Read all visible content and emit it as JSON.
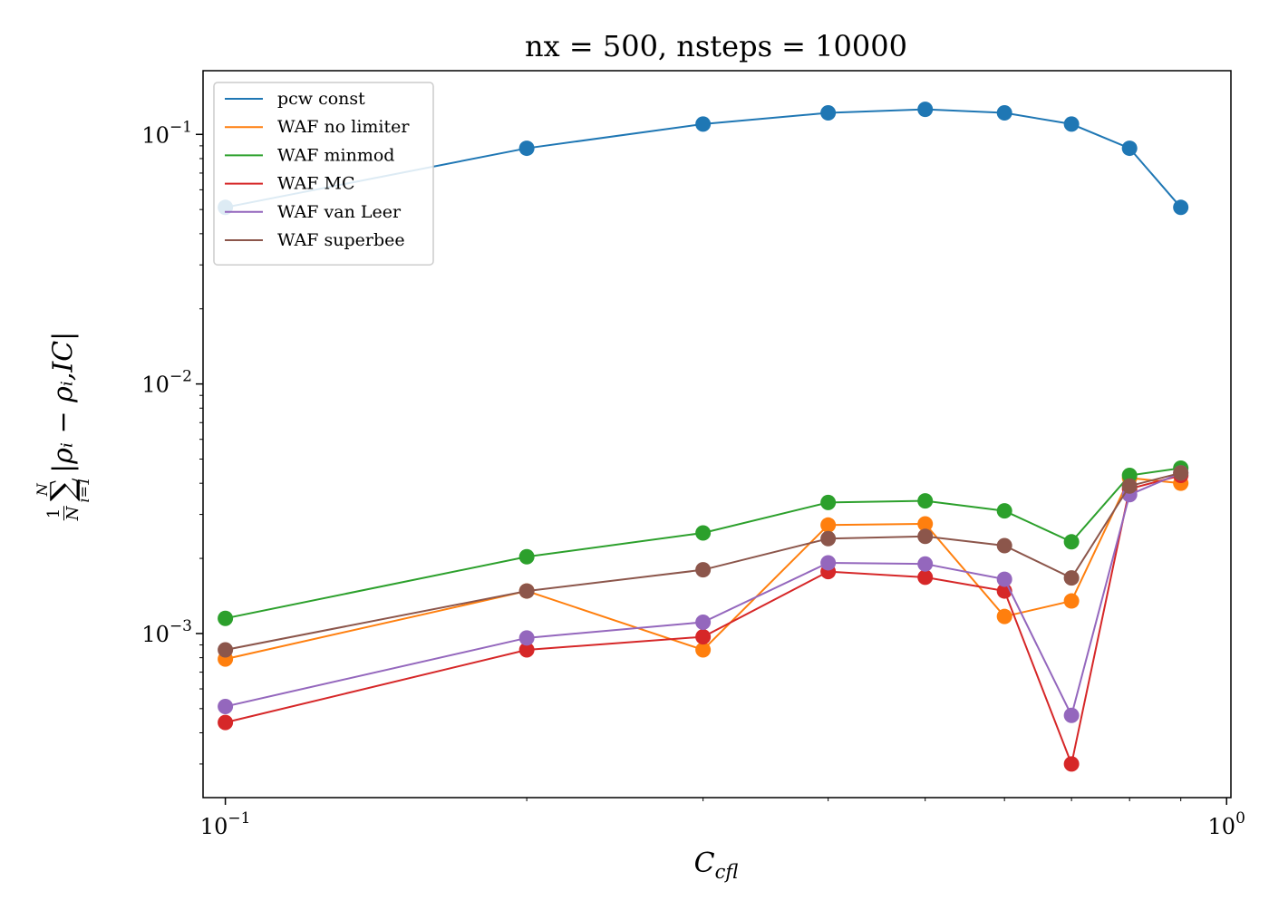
{
  "chart_data": {
    "type": "line",
    "title": "nx = 500, nsteps = 10000",
    "xlabel": "C",
    "xlabel_sub": "cfl",
    "ylabel": {
      "frac_num": "1",
      "frac_den": "N",
      "sum_top": "N",
      "sum_bottom": "i=1",
      "sum_symbol": "∑",
      "body": "|ρᵢ − ρᵢ,IC|"
    },
    "xscale": "log",
    "yscale": "log",
    "xlim": [
      0.095,
      1.01
    ],
    "ylim": [
      0.00022,
      0.18
    ],
    "x_ticks": [
      {
        "value": 0.1,
        "base": "10",
        "exp": "−1"
      },
      {
        "value": 1.0,
        "base": "10",
        "exp": "0"
      }
    ],
    "y_ticks": [
      {
        "value": 0.001,
        "base": "10",
        "exp": "−3"
      },
      {
        "value": 0.01,
        "base": "10",
        "exp": "−2"
      },
      {
        "value": 0.1,
        "base": "10",
        "exp": "−1"
      }
    ],
    "legend_position": "top-left",
    "grid": false,
    "x": [
      0.1,
      0.2,
      0.3,
      0.4,
      0.5,
      0.6,
      0.7,
      0.8,
      0.9
    ],
    "series": [
      {
        "name": "pcw const",
        "color": "#1f77b4",
        "values": [
          0.051,
          0.088,
          0.11,
          0.122,
          0.126,
          0.122,
          0.11,
          0.088,
          0.051
        ]
      },
      {
        "name": "WAF no limiter",
        "color": "#ff7f0e",
        "values": [
          0.00079,
          0.00148,
          0.00086,
          0.00272,
          0.00275,
          0.00117,
          0.00135,
          0.0042,
          0.004
        ]
      },
      {
        "name": "WAF minmod",
        "color": "#2ca02c",
        "values": [
          0.00115,
          0.00203,
          0.00253,
          0.00335,
          0.0034,
          0.0031,
          0.00233,
          0.0043,
          0.0046
        ]
      },
      {
        "name": "WAF MC",
        "color": "#d62728",
        "values": [
          0.00044,
          0.00086,
          0.00097,
          0.00177,
          0.00168,
          0.00148,
          0.0003,
          0.0038,
          0.0043
        ]
      },
      {
        "name": "WAF van Leer",
        "color": "#9467bd",
        "values": [
          0.00051,
          0.00096,
          0.00111,
          0.00192,
          0.0019,
          0.00165,
          0.00047,
          0.0036,
          0.0044
        ]
      },
      {
        "name": "WAF superbee",
        "color": "#8c564b",
        "values": [
          0.00086,
          0.00148,
          0.0018,
          0.0024,
          0.00245,
          0.00225,
          0.00167,
          0.0039,
          0.0044
        ]
      }
    ]
  }
}
